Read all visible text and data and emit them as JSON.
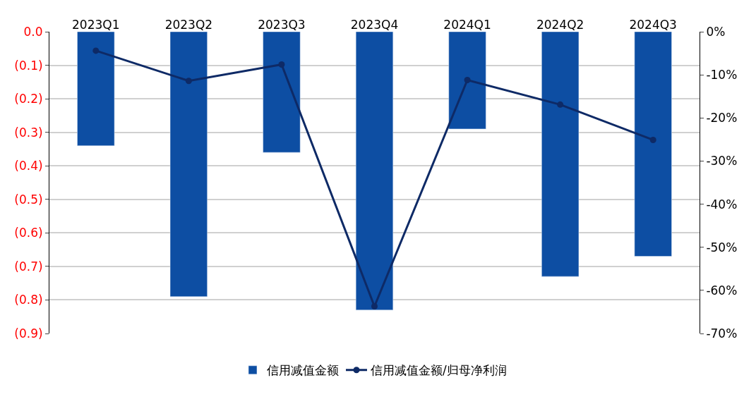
{
  "chart_data": {
    "type": "bar",
    "categories": [
      "2023Q1",
      "2023Q2",
      "2023Q3",
      "2023Q4",
      "2024Q1",
      "2024Q2",
      "2024Q3"
    ],
    "series": [
      {
        "name": "信用减值金额",
        "color": "#0d4ea3",
        "values": [
          -0.34,
          -0.79,
          -0.36,
          -0.83,
          -0.29,
          -0.73,
          -0.67
        ]
      },
      {
        "name": "信用减值金额/归母净利润",
        "type": "line",
        "axis": "y2",
        "color": "#0e2a66",
        "marker": "circle",
        "values": [
          -4.4,
          -11.4,
          -7.6,
          -63.7,
          -11.2,
          -16.9,
          -25.1
        ]
      }
    ],
    "ylim": [
      -0.9,
      0
    ],
    "yticks": [
      {
        "value": 0,
        "label": "0.0"
      },
      {
        "value": -0.1,
        "label": "(0.1)"
      },
      {
        "value": -0.2,
        "label": "(0.2)"
      },
      {
        "value": -0.3,
        "label": "(0.3)"
      },
      {
        "value": -0.4,
        "label": "(0.4)"
      },
      {
        "value": -0.5,
        "label": "(0.5)"
      },
      {
        "value": -0.6,
        "label": "(0.6)"
      },
      {
        "value": -0.7,
        "label": "(0.7)"
      },
      {
        "value": -0.8,
        "label": "(0.8)"
      },
      {
        "value": -0.9,
        "label": "(0.9)"
      }
    ],
    "y2lim": [
      -70,
      0
    ],
    "y2ticks": [
      {
        "value": 0,
        "label": "0%"
      },
      {
        "value": -10,
        "label": "-10%"
      },
      {
        "value": -20,
        "label": "-20%"
      },
      {
        "value": -30,
        "label": "-30%"
      },
      {
        "value": -40,
        "label": "-40%"
      },
      {
        "value": -50,
        "label": "-50%"
      },
      {
        "value": -60,
        "label": "-60%"
      },
      {
        "value": -70,
        "label": "-70%"
      }
    ],
    "grid": "y",
    "legend": "bottom"
  }
}
